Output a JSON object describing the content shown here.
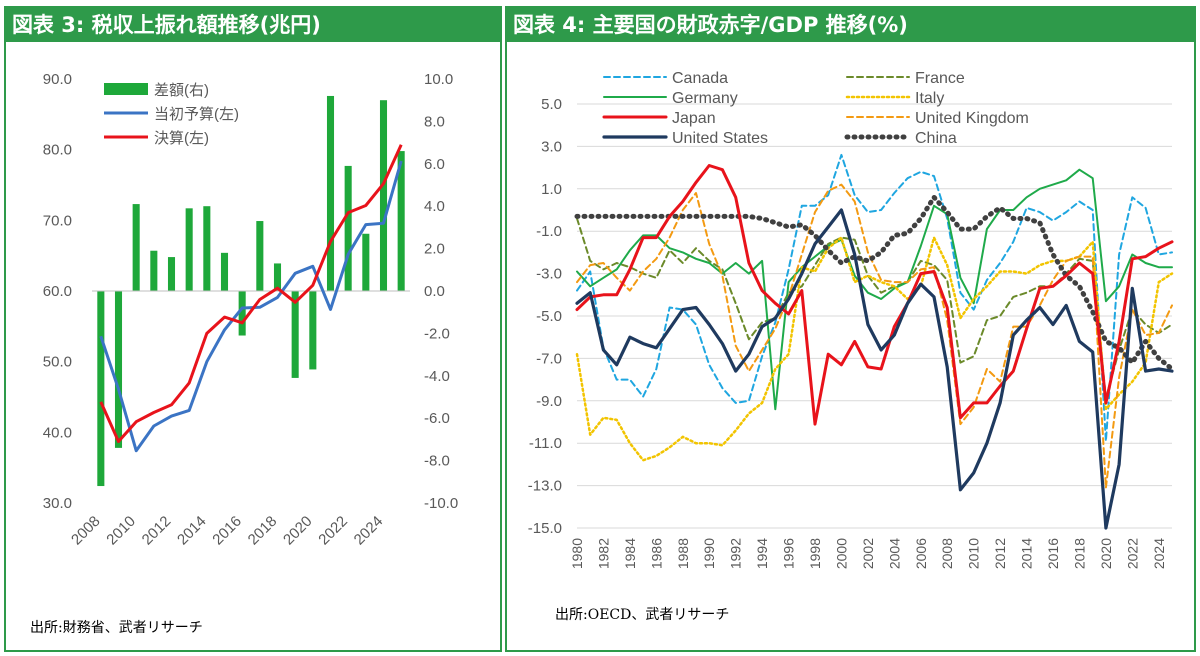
{
  "left_panel": {
    "title": "図表 3: 税収上振れ額推移(兆円)",
    "source": "出所:財務省、武者リサーチ"
  },
  "right_panel": {
    "title": "図表 4: 主要国の財政赤字/GDP 推移(%)",
    "source": "出所:OECD、武者リサーチ"
  },
  "colors": {
    "header_green": "#2e9a4a",
    "bar_green": "#1ea83a",
    "initial_budget_blue": "#3b74c4",
    "settled_red": "#e8131b",
    "canada": "#1fa6e0",
    "france": "#6b8a2a",
    "germany": "#1faa4a",
    "italy": "#f2c400",
    "japan": "#e8131b",
    "uk": "#f39a12",
    "us": "#1f3a5f",
    "china": "#404040"
  },
  "chart_data": [
    {
      "type": "bar",
      "id": "tax-revenue",
      "x": [
        2008,
        2009,
        2010,
        2011,
        2012,
        2013,
        2014,
        2015,
        2016,
        2017,
        2018,
        2019,
        2020,
        2021,
        2022,
        2023,
        2024,
        2025
      ],
      "x_tick_labels": [
        "2008",
        "2010",
        "2012",
        "2014",
        "2016",
        "2018",
        "2020",
        "2022",
        "2024"
      ],
      "y_left_ticks": [
        "90.0",
        "80.0",
        "70.0",
        "60.0",
        "50.0",
        "40.0",
        "30.0"
      ],
      "y_left_range": [
        30,
        90
      ],
      "y_right_ticks": [
        "10.0",
        "8.0",
        "6.0",
        "4.0",
        "2.0",
        "0.0",
        "-2.0",
        "-4.0",
        "-6.0",
        "-8.0",
        "-10.0"
      ],
      "y_right_range": [
        -10,
        10
      ],
      "legend_position": "top-left",
      "series": [
        {
          "name": "差額(右)",
          "kind": "bar",
          "axis": "right",
          "values": [
            -9.2,
            -7.4,
            4.1,
            1.9,
            1.6,
            3.9,
            4.0,
            1.8,
            -2.1,
            3.3,
            1.3,
            -4.1,
            -3.7,
            9.2,
            5.9,
            2.7,
            9.0,
            6.6
          ]
        },
        {
          "name": "当初予算(左)",
          "kind": "line",
          "axis": "left",
          "values": [
            53.6,
            46.1,
            37.4,
            40.9,
            42.3,
            43.1,
            50.0,
            54.5,
            57.6,
            57.7,
            59.1,
            62.5,
            63.5,
            57.4,
            65.2,
            69.4,
            69.6,
            78.4
          ]
        },
        {
          "name": "決算(左)",
          "kind": "line",
          "axis": "left",
          "values": [
            44.3,
            38.7,
            41.5,
            42.8,
            43.9,
            47.0,
            54.0,
            56.3,
            55.5,
            58.8,
            60.4,
            58.4,
            60.8,
            67.0,
            71.1,
            72.1,
            75.2,
            80.7
          ]
        }
      ]
    },
    {
      "type": "line",
      "id": "fiscal-deficit",
      "x_start": 1980,
      "x_end": 2025,
      "x_tick_labels": [
        "1980",
        "1982",
        "1984",
        "1986",
        "1988",
        "1990",
        "1992",
        "1994",
        "1996",
        "1998",
        "2000",
        "2002",
        "2004",
        "2006",
        "2008",
        "2010",
        "2012",
        "2014",
        "2016",
        "2018",
        "2020",
        "2022",
        "2024"
      ],
      "y_ticks": [
        "5.0",
        "3.0",
        "1.0",
        "-1.0",
        "-3.0",
        "-5.0",
        "-7.0",
        "-9.0",
        "-11.0",
        "-13.0",
        "-15.0"
      ],
      "y_range": [
        -15,
        5
      ],
      "legend_position": "top",
      "series": [
        {
          "name": "Canada",
          "style": "dashed",
          "values": [
            -3.8,
            -2.9,
            -6.5,
            -8.0,
            -8.0,
            -8.8,
            -7.5,
            -4.6,
            -4.7,
            -5.4,
            -7.3,
            -8.4,
            -9.1,
            -9.0,
            -6.9,
            -5.3,
            -2.8,
            0.2,
            0.2,
            0.7,
            2.6,
            0.7,
            -0.1,
            0.0,
            0.8,
            1.5,
            1.8,
            1.6,
            -0.4,
            -3.9,
            -4.7,
            -3.3,
            -2.5,
            -1.5,
            0.1,
            -0.1,
            -0.5,
            -0.1,
            0.4,
            0.0,
            -10.9,
            -2.1,
            0.6,
            0.1,
            -2.1,
            -2.0
          ]
        },
        {
          "name": "France",
          "style": "dashed",
          "values": [
            -0.4,
            -2.4,
            -2.8,
            -2.5,
            -2.7,
            -3.0,
            -3.2,
            -1.9,
            -2.5,
            -1.8,
            -2.4,
            -2.8,
            -4.4,
            -6.1,
            -5.3,
            -5.1,
            -3.9,
            -3.6,
            -2.6,
            -1.6,
            -1.3,
            -1.4,
            -3.1,
            -3.9,
            -3.6,
            -3.4,
            -2.4,
            -2.6,
            -3.3,
            -7.2,
            -6.9,
            -5.2,
            -5.0,
            -4.1,
            -3.9,
            -3.6,
            -3.6,
            -3.0,
            -2.3,
            -2.4,
            -8.9,
            -6.6,
            -4.7,
            -5.4,
            -5.8,
            -5.4
          ]
        },
        {
          "name": "Germany",
          "style": "solid",
          "values": [
            -2.9,
            -3.6,
            -3.2,
            -2.8,
            -1.9,
            -1.2,
            -1.2,
            -1.8,
            -2.0,
            -2.3,
            -2.5,
            -3.0,
            -2.5,
            -3.0,
            -2.4,
            -9.4,
            -3.4,
            -2.7,
            -2.2,
            -1.7,
            -1.4,
            -3.1,
            -3.9,
            -4.2,
            -3.7,
            -3.4,
            -1.7,
            0.2,
            -0.2,
            -3.2,
            -4.4,
            -0.9,
            0.0,
            0.0,
            0.6,
            1.0,
            1.2,
            1.4,
            1.9,
            1.5,
            -4.3,
            -3.6,
            -2.1,
            -2.5,
            -2.7,
            -2.7
          ]
        },
        {
          "name": "Italy",
          "style": "dotted",
          "values": [
            -6.8,
            -10.6,
            -9.8,
            -9.9,
            -11.0,
            -11.8,
            -11.6,
            -11.2,
            -10.7,
            -11.0,
            -11.0,
            -11.1,
            -10.4,
            -9.6,
            -9.1,
            -7.5,
            -6.8,
            -2.7,
            -2.9,
            -1.8,
            -1.3,
            -3.4,
            -3.1,
            -3.4,
            -3.6,
            -4.2,
            -3.6,
            -1.3,
            -2.6,
            -5.1,
            -4.2,
            -3.6,
            -2.9,
            -2.9,
            -3.0,
            -2.6,
            -2.4,
            -2.4,
            -2.2,
            -1.5,
            -9.4,
            -8.7,
            -8.1,
            -7.2,
            -3.4,
            -3.0
          ]
        },
        {
          "name": "United Kingdom",
          "style": "dashed",
          "values": [
            -3.4,
            -2.6,
            -2.5,
            -3.2,
            -3.8,
            -2.9,
            -2.3,
            -1.3,
            0.0,
            0.8,
            -1.6,
            -3.1,
            -6.4,
            -7.6,
            -6.6,
            -5.6,
            -4.1,
            -2.1,
            -0.1,
            0.9,
            1.2,
            0.4,
            -2.0,
            -3.3,
            -3.4,
            -3.4,
            -2.8,
            -2.7,
            -5.2,
            -10.1,
            -9.3,
            -7.5,
            -8.1,
            -5.5,
            -5.5,
            -4.5,
            -3.3,
            -2.4,
            -2.2,
            -2.2,
            -13.1,
            -7.9,
            -4.7,
            -5.9,
            -5.8,
            -4.5
          ]
        },
        {
          "name": "Japan",
          "style": "solid",
          "values": [
            -4.7,
            -4.1,
            -4.0,
            -4.0,
            -2.8,
            -1.3,
            -1.3,
            -0.3,
            0.4,
            1.3,
            2.1,
            1.9,
            0.6,
            -2.5,
            -3.8,
            -4.4,
            -4.9,
            -3.8,
            -10.1,
            -6.8,
            -7.3,
            -6.2,
            -7.4,
            -7.5,
            -5.5,
            -4.4,
            -3.0,
            -2.9,
            -4.6,
            -9.8,
            -9.1,
            -9.1,
            -8.3,
            -7.6,
            -5.6,
            -3.7,
            -3.6,
            -3.1,
            -2.5,
            -3.0,
            -9.1,
            -6.2,
            -2.3,
            -2.2,
            -1.8,
            -1.5
          ]
        },
        {
          "name": "United States",
          "style": "solid",
          "values": [
            -4.4,
            -3.9,
            -6.6,
            -7.3,
            -6.0,
            -6.3,
            -6.5,
            -5.6,
            -4.7,
            -4.6,
            -5.4,
            -6.3,
            -7.6,
            -6.8,
            -5.5,
            -5.1,
            -4.2,
            -3.0,
            -1.6,
            -0.8,
            0.0,
            -2.1,
            -5.4,
            -6.6,
            -5.9,
            -4.4,
            -3.5,
            -4.1,
            -7.4,
            -13.2,
            -12.4,
            -11.0,
            -9.1,
            -5.9,
            -5.2,
            -4.6,
            -5.4,
            -4.5,
            -6.2,
            -6.7,
            -15.0,
            -12.0,
            -3.7,
            -7.6,
            -7.5,
            -7.6
          ]
        },
        {
          "name": "China",
          "style": "dotted",
          "values": [
            -0.3,
            -0.3,
            -0.3,
            -0.3,
            -0.3,
            -0.3,
            -0.3,
            -0.3,
            -0.3,
            -0.3,
            -0.3,
            -0.3,
            -0.3,
            -0.3,
            -0.4,
            -0.6,
            -0.8,
            -0.7,
            -1.2,
            -1.9,
            -2.5,
            -2.2,
            -2.4,
            -2.0,
            -1.2,
            -1.1,
            -0.4,
            0.6,
            -0.1,
            -0.9,
            -0.9,
            -0.3,
            0.1,
            -0.4,
            -0.4,
            -0.6,
            -2.1,
            -3.1,
            -3.6,
            -4.8,
            -6.2,
            -6.5,
            -7.2,
            -6.2,
            -7.0,
            -7.5
          ]
        }
      ]
    }
  ]
}
